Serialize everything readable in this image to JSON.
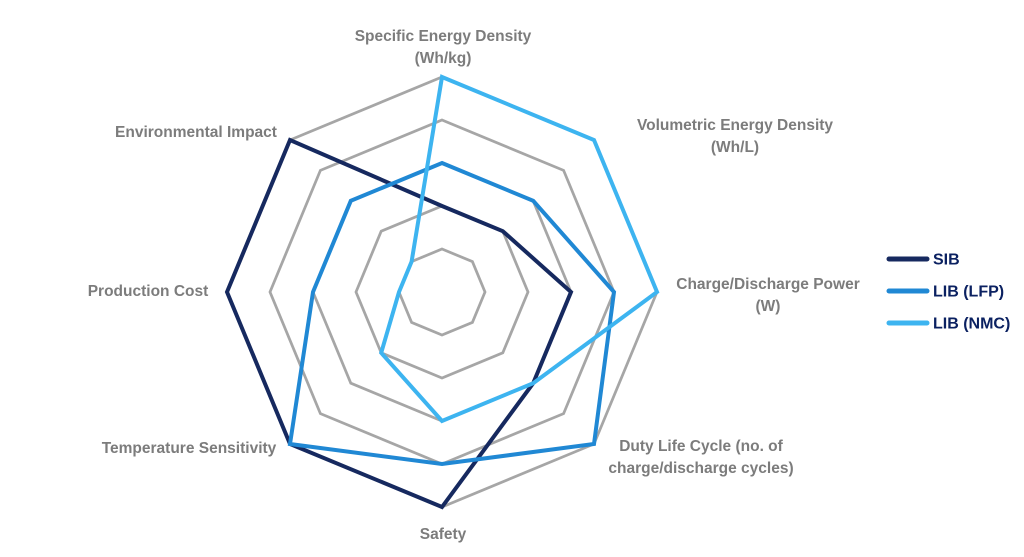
{
  "chart_data": {
    "type": "radar",
    "title": "",
    "categories": [
      "Specific Energy Density (Wh/kg)",
      "Volumetric Energy Density (Wh/L)",
      "Charge/Discharge Power (W)",
      "Duty Life Cycle (no. of charge/discharge cycles)",
      "Safety",
      "Temperature Sensitivity",
      "Production Cost",
      "Environmental Impact"
    ],
    "axis_label_lines": [
      [
        "Specific Energy Density",
        "(Wh/kg)"
      ],
      [
        "Volumetric Energy Density",
        "(Wh/L)"
      ],
      [
        "Charge/Discharge Power",
        "(W)"
      ],
      [
        "Duty Life Cycle (no. of",
        "charge/discharge cycles)"
      ],
      [
        "Safety"
      ],
      [
        "Temperature Sensitivity"
      ],
      [
        "Production Cost"
      ],
      [
        "Environmental Impact"
      ]
    ],
    "series": [
      {
        "name": "SIB",
        "color": "#16295F",
        "values": [
          2,
          2,
          3,
          3,
          5,
          5,
          5,
          5
        ]
      },
      {
        "name": "LIB (LFP)",
        "color": "#2088D4",
        "values": [
          3,
          3,
          4,
          5,
          4,
          5,
          3,
          3
        ]
      },
      {
        "name": "LIB (NMC)",
        "color": "#3DB4F0",
        "values": [
          5,
          5,
          5,
          3,
          3,
          2,
          1,
          1
        ]
      }
    ],
    "scale": {
      "min": 0,
      "max": 5,
      "rings": 5,
      "ring_values": [
        1,
        2,
        3,
        4,
        5
      ]
    },
    "grid": {
      "visible": true,
      "color": "#A6A6A6",
      "shape": "octagon",
      "radial_spokes": false
    },
    "axis_label_color": "#7C7C7C",
    "legend": {
      "position": "right",
      "text_color": "#0B2161",
      "entries": [
        "SIB",
        "LIB (LFP)",
        "LIB (NMC)"
      ]
    }
  }
}
